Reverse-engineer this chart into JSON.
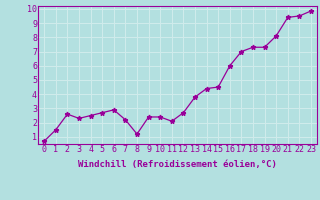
{
  "x": [
    0,
    1,
    2,
    3,
    4,
    5,
    6,
    7,
    8,
    9,
    10,
    11,
    12,
    13,
    14,
    15,
    16,
    17,
    18,
    19,
    20,
    21,
    22,
    23
  ],
  "y": [
    0.7,
    1.5,
    2.6,
    2.3,
    2.5,
    2.7,
    2.9,
    2.2,
    1.2,
    2.4,
    2.4,
    2.1,
    2.7,
    3.8,
    4.4,
    4.5,
    6.0,
    7.0,
    7.3,
    7.3,
    8.1,
    9.4,
    9.5,
    9.85
  ],
  "xlim_min": -0.5,
  "xlim_max": 23.5,
  "ylim_min": 0.5,
  "ylim_max": 10.2,
  "xlabel": "Windchill (Refroidissement éolien,°C)",
  "xticks": [
    0,
    1,
    2,
    3,
    4,
    5,
    6,
    7,
    8,
    9,
    10,
    11,
    12,
    13,
    14,
    15,
    16,
    17,
    18,
    19,
    20,
    21,
    22,
    23
  ],
  "yticks": [
    1,
    2,
    3,
    4,
    5,
    6,
    7,
    8,
    9,
    10
  ],
  "line_color": "#990099",
  "marker": "*",
  "markersize": 3.5,
  "bg_color": "#b3e0e0",
  "grid_color": "#d0ecec",
  "axis_bg": "#b3e0e0",
  "xlabel_fontsize": 6.5,
  "tick_fontsize": 6.0,
  "linewidth": 0.9
}
